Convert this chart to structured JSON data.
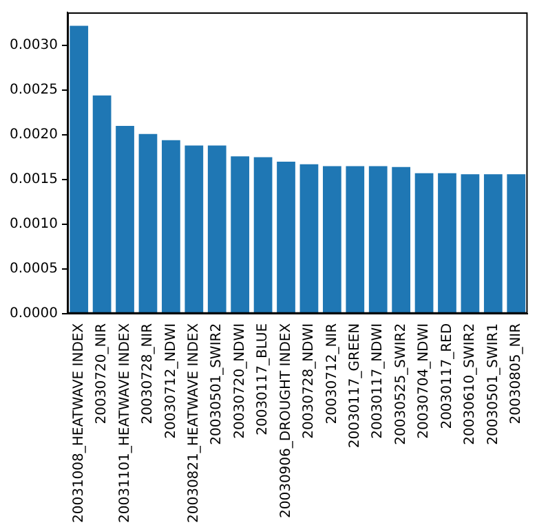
{
  "chart_data": {
    "type": "bar",
    "categories": [
      "20031008_HEATWAVE INDEX",
      "20030720_NIR",
      "20031101_HEATWAVE INDEX",
      "20030728_NIR",
      "20030712_NDWI",
      "20030821_HEATWAVE INDEX",
      "20030501_SWIR2",
      "20030720_NDWI",
      "20030117_BLUE",
      "20030906_DROUGHT INDEX",
      "20030728_NDWI",
      "20030712_NIR",
      "20030117_GREEN",
      "20030117_NDWI",
      "20030525_SWIR2",
      "20030704_NDWI",
      "20030117_RED",
      "20030610_SWIR2",
      "20030501_SWIR1",
      "20030805_NIR"
    ],
    "values": [
      0.00322,
      0.00244,
      0.0021,
      0.00201,
      0.00194,
      0.00188,
      0.00188,
      0.00176,
      0.00175,
      0.0017,
      0.00167,
      0.00165,
      0.00165,
      0.00165,
      0.00164,
      0.00157,
      0.00157,
      0.00156,
      0.00156,
      0.00156
    ],
    "color": "#1f77b4",
    "ylim": [
      0,
      0.00337
    ],
    "yticks": [
      {
        "value": 0,
        "label": "0.0000"
      },
      {
        "value": 0.0005,
        "label": "0.0005"
      },
      {
        "value": 0.001,
        "label": "0.0010"
      },
      {
        "value": 0.0015,
        "label": "0.0015"
      },
      {
        "value": 0.002,
        "label": "0.0020"
      },
      {
        "value": 0.0025,
        "label": "0.0025"
      },
      {
        "value": 0.003,
        "label": "0.0030"
      }
    ],
    "grid": false,
    "legend": false
  }
}
